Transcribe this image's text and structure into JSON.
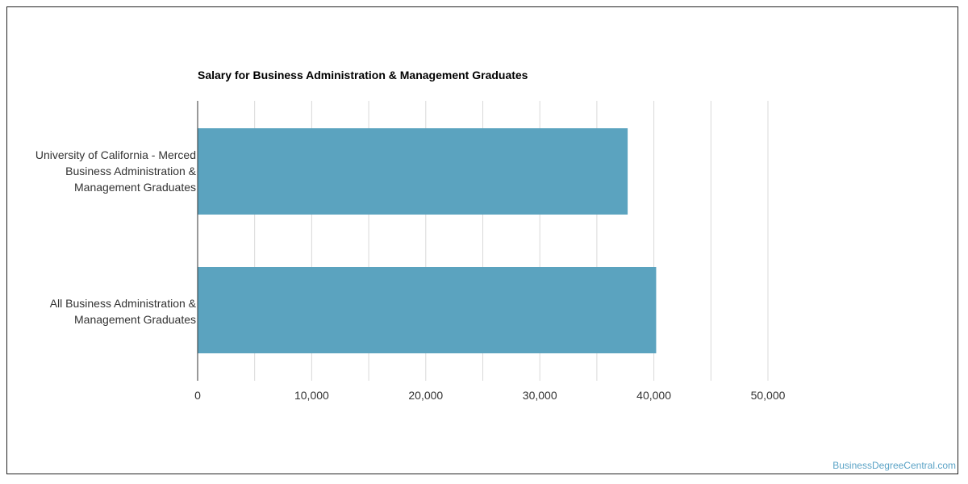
{
  "chart_data": {
    "type": "bar",
    "orientation": "horizontal",
    "title": "Salary for Business Administration & Management Graduates",
    "categories": [
      "University of California - Merced\nBusiness Administration &\nManagement Graduates",
      "All Business Administration &\nManagement Graduates"
    ],
    "values": [
      37700,
      40200
    ],
    "xlim": [
      0,
      50000
    ],
    "xticks": [
      "0",
      "10,000",
      "20,000",
      "30,000",
      "40,000",
      "50,000"
    ],
    "bar_color": "#5ba3bf",
    "grid": true,
    "legend": "none"
  },
  "watermark": "BusinessDegreeCentral.com"
}
